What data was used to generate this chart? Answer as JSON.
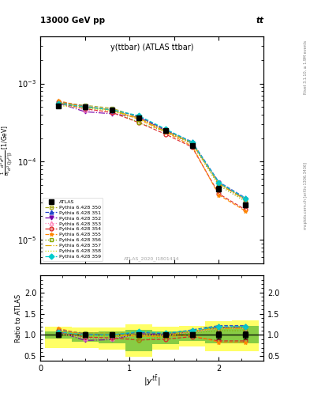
{
  "title_main": "y(ttbar) (ATLAS ttbar)",
  "header_left": "13000 GeV pp",
  "header_right": "tt",
  "watermark": "ATLAS_2020_I1801434",
  "right_label_top": "Rivet 3.1.10, ≥ 1.9M events",
  "right_label_bottom": "mcplots.cern.ch [arXiv:1306.3436]",
  "ylabel_ratio": "Ratio to ATLAS",
  "xlim": [
    0,
    2.5
  ],
  "ylim_main": [
    5e-06,
    0.004
  ],
  "ylim_ratio": [
    0.4,
    2.4
  ],
  "x_data": [
    0.2,
    0.5,
    0.8,
    1.1,
    1.4,
    1.7,
    2.0,
    2.3
  ],
  "x_edges": [
    0.05,
    0.35,
    0.65,
    0.95,
    1.25,
    1.55,
    1.85,
    2.15,
    2.45
  ],
  "atlas_y": [
    0.00052,
    0.0005,
    0.00046,
    0.00036,
    0.00025,
    0.00016,
    4.5e-05,
    2.8e-05
  ],
  "atlas_yerr": [
    2.8e-05,
    2.2e-05,
    2e-05,
    1.6e-05,
    1.2e-05,
    9e-06,
    3.5e-06,
    2.2e-06
  ],
  "green_band_hi": [
    1.09,
    1.07,
    1.08,
    1.12,
    1.08,
    1.1,
    1.2,
    1.22
  ],
  "green_band_lo": [
    0.91,
    0.84,
    0.8,
    0.62,
    0.78,
    0.85,
    0.8,
    0.8
  ],
  "yellow_band_hi": [
    1.2,
    1.18,
    1.18,
    1.25,
    1.2,
    1.22,
    1.32,
    1.35
  ],
  "yellow_band_lo": [
    0.7,
    0.7,
    0.65,
    0.48,
    0.65,
    0.72,
    0.62,
    0.62
  ],
  "series": [
    {
      "label": "Pythia 6.428 350",
      "color": "#aaaa22",
      "linestyle": "--",
      "marker": "s",
      "markerfill": "none",
      "ratio": [
        1.1,
        1.05,
        1.05,
        1.04,
        1.03,
        1.08,
        1.18,
        1.18
      ]
    },
    {
      "label": "Pythia 6.428 351",
      "color": "#2244cc",
      "linestyle": "--",
      "marker": "^",
      "markerfill": "full",
      "ratio": [
        1.13,
        1.02,
        1.0,
        1.06,
        1.03,
        1.12,
        1.22,
        1.22
      ]
    },
    {
      "label": "Pythia 6.428 352",
      "color": "#7700aa",
      "linestyle": "-.",
      "marker": "v",
      "markerfill": "full",
      "ratio": [
        1.08,
        0.87,
        0.89,
        1.03,
        1.0,
        1.08,
        1.18,
        1.18
      ]
    },
    {
      "label": "Pythia 6.428 353",
      "color": "#ff88bb",
      "linestyle": ":",
      "marker": "^",
      "markerfill": "none",
      "ratio": [
        1.05,
        0.92,
        0.92,
        1.0,
        0.97,
        1.07,
        1.15,
        1.15
      ]
    },
    {
      "label": "Pythia 6.428 354",
      "color": "#dd2222",
      "linestyle": "--",
      "marker": "o",
      "markerfill": "none",
      "ratio": [
        1.08,
        0.95,
        0.93,
        0.88,
        0.9,
        0.96,
        0.86,
        0.86
      ]
    },
    {
      "label": "Pythia 6.428 355",
      "color": "#ff8800",
      "linestyle": "--",
      "marker": "*",
      "markerfill": "full",
      "ratio": [
        1.16,
        1.0,
        1.0,
        0.97,
        0.96,
        0.99,
        0.83,
        0.83
      ]
    },
    {
      "label": "Pythia 6.428 356",
      "color": "#88aa00",
      "linestyle": ":",
      "marker": "s",
      "markerfill": "none",
      "ratio": [
        1.04,
        1.0,
        1.0,
        0.88,
        0.97,
        1.05,
        1.1,
        1.1
      ]
    },
    {
      "label": "Pythia 6.428 357",
      "color": "#ddaa00",
      "linestyle": "-.",
      "marker": "None",
      "markerfill": "none",
      "ratio": [
        1.1,
        1.0,
        1.0,
        1.0,
        0.97,
        1.1,
        1.15,
        1.15
      ]
    },
    {
      "label": "Pythia 6.428 358",
      "color": "#ccdd00",
      "linestyle": ":",
      "marker": "None",
      "markerfill": "full",
      "ratio": [
        1.0,
        0.97,
        0.97,
        1.0,
        1.0,
        1.08,
        1.17,
        1.17
      ]
    },
    {
      "label": "Pythia 6.428 359",
      "color": "#00cccc",
      "linestyle": "--",
      "marker": "D",
      "markerfill": "full",
      "ratio": [
        1.07,
        1.0,
        1.0,
        1.08,
        1.05,
        1.1,
        1.2,
        1.2
      ]
    }
  ]
}
